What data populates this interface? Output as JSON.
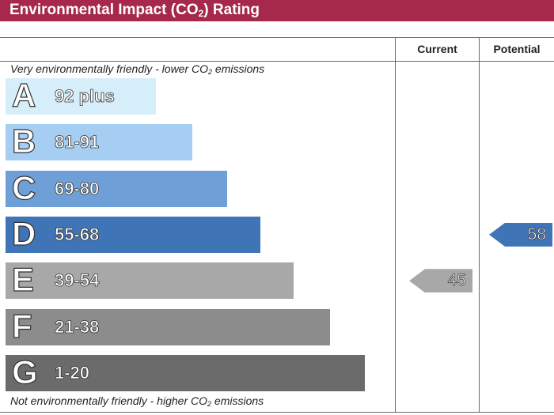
{
  "header": {
    "title_prefix": "Environmental Impact (CO",
    "title_sub": "2",
    "title_suffix": ") Rating"
  },
  "columns": {
    "current": "Current",
    "potential": "Potential"
  },
  "notes": {
    "top_prefix": "Very environmentally friendly - lower CO",
    "top_sub": "2",
    "top_suffix": " emissions",
    "bottom_prefix": "Not environmentally friendly - higher CO",
    "bottom_sub": "2",
    "bottom_suffix": " emissions"
  },
  "chart_data": {
    "type": "bar",
    "orientation": "horizontal",
    "categories": [
      "A",
      "B",
      "C",
      "D",
      "E",
      "F",
      "G"
    ],
    "ranges": [
      "92 plus",
      "81-91",
      "69-80",
      "55-68",
      "39-54",
      "21-38",
      "1-20"
    ],
    "range_min": [
      92,
      81,
      69,
      55,
      39,
      21,
      1
    ],
    "colors": [
      "#d6eefa",
      "#a6cdf2",
      "#6e9fd6",
      "#3f74b6",
      "#a8a8a8",
      "#8c8c8c",
      "#6b6b6b"
    ],
    "current": {
      "value": 45,
      "band": "E",
      "color": "#a8a8a8"
    },
    "potential": {
      "value": 58,
      "band": "D",
      "color": "#3f74b6"
    }
  }
}
